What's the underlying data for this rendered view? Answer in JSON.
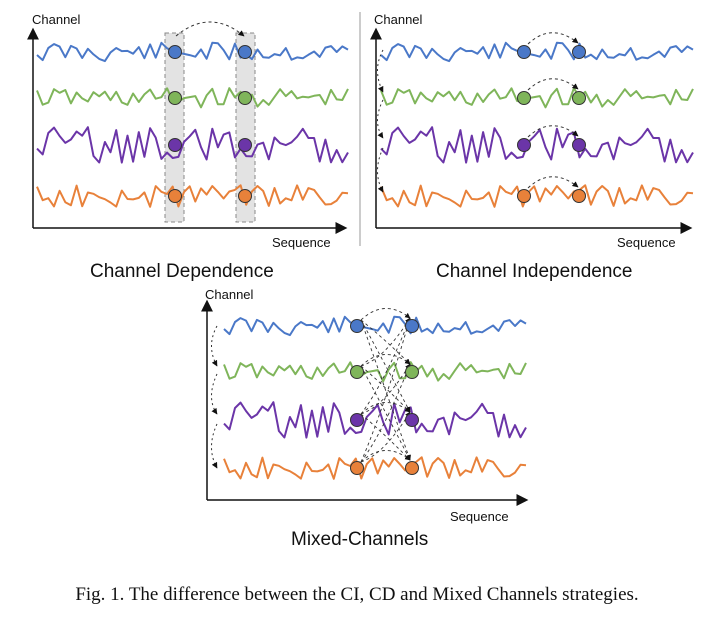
{
  "colors": {
    "blue": "#4a78c8",
    "green": "#7fb55a",
    "purple": "#6b35a8",
    "orange": "#e8813a",
    "axis": "#111111",
    "highlight_band": "#e3e3e3"
  },
  "panels": [
    {
      "id": "cd",
      "title": "Channel Dependence",
      "ylabel": "Channel",
      "xlabel": "Sequence"
    },
    {
      "id": "ci",
      "title": "Channel Independence",
      "ylabel": "Channel",
      "xlabel": "Sequence"
    },
    {
      "id": "mix",
      "title": "Mixed-Channels",
      "ylabel": "Channel",
      "xlabel": "Sequence"
    }
  ],
  "channels": [
    "blue",
    "green",
    "purple",
    "orange"
  ],
  "caption": "Fig. 1.  The difference between the CI, CD and Mixed Channels strategies."
}
